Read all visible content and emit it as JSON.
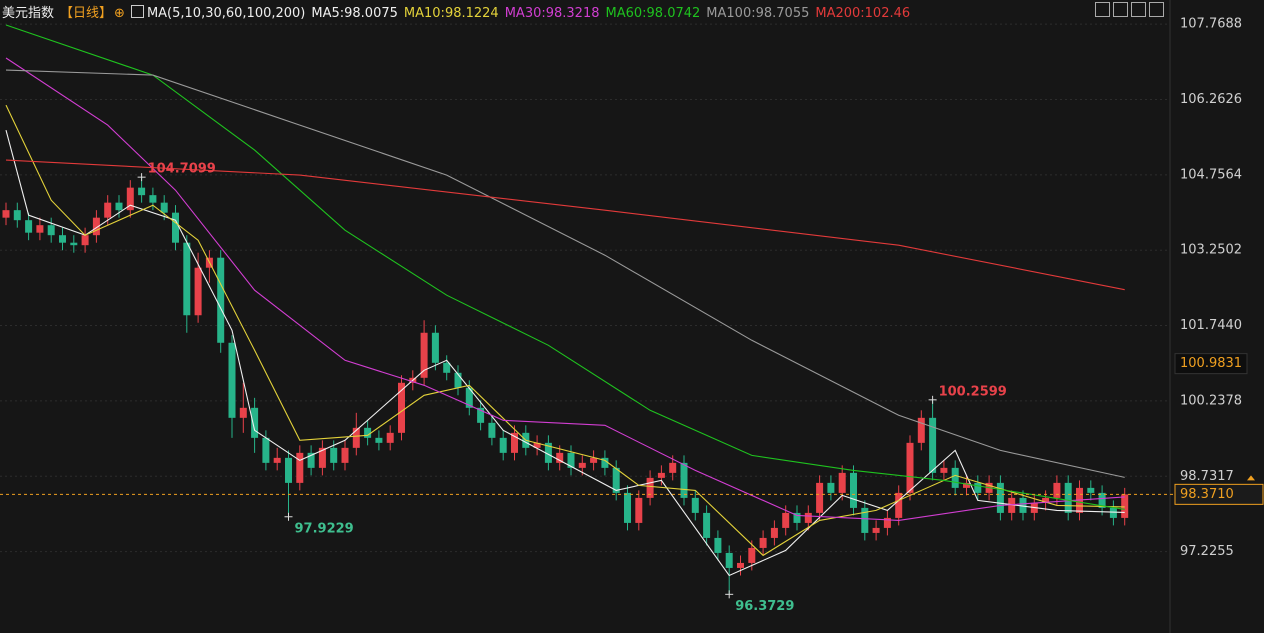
{
  "header": {
    "title": "美元指数",
    "period": "【日线】",
    "ma_label": "MA(5,10,30,60,100,200)"
  },
  "chart_data": {
    "type": "candlestick",
    "up_color": "#e8424a",
    "down_color": "#27b48a",
    "ylim": [
      95.6,
      108.25
    ],
    "yticks": [
      97.2255,
      98.7317,
      {
        "value": 100.2378,
        "label": "100.2378"
      },
      {
        "value": 101.744,
        "label": "101.7440"
      },
      103.2502,
      104.7564,
      106.2626,
      107.7688
    ],
    "grid": true,
    "open": [
      103.9,
      104.05,
      103.85,
      103.6,
      103.75,
      103.55,
      103.4,
      103.35,
      103.55,
      103.9,
      104.2,
      104.05,
      104.5,
      104.35,
      104.2,
      104.0,
      103.4,
      101.95,
      102.9,
      103.1,
      101.4,
      99.9,
      100.1,
      99.5,
      99.0,
      99.1,
      98.6,
      99.2,
      98.9,
      99.3,
      99.0,
      99.3,
      99.7,
      99.5,
      99.4,
      99.6,
      100.6,
      100.7,
      101.6,
      101.0,
      100.8,
      100.5,
      100.1,
      99.8,
      99.5,
      99.2,
      99.6,
      99.3,
      99.4,
      99.0,
      99.2,
      98.9,
      99.0,
      99.1,
      98.9,
      98.4,
      97.8,
      98.3,
      98.7,
      98.8,
      99.0,
      98.3,
      98.0,
      97.5,
      97.2,
      96.9,
      97.0,
      97.3,
      97.5,
      97.7,
      98.0,
      97.8,
      98.0,
      98.6,
      98.4,
      98.8,
      98.1,
      97.6,
      97.7,
      97.9,
      98.4,
      99.4,
      99.9,
      98.8,
      98.9,
      98.5,
      98.6,
      98.4,
      98.6,
      98.0,
      98.3,
      98.0,
      98.2,
      98.3,
      98.6,
      98.0,
      98.5,
      98.4,
      98.1,
      97.9
    ],
    "high": [
      104.2,
      104.2,
      104.0,
      103.9,
      103.9,
      103.7,
      103.55,
      103.7,
      104.05,
      104.35,
      104.35,
      104.65,
      104.7099,
      104.5,
      104.35,
      104.15,
      103.55,
      103.2,
      103.25,
      103.25,
      101.55,
      100.6,
      100.3,
      99.65,
      99.3,
      99.25,
      99.35,
      99.35,
      99.45,
      99.45,
      99.45,
      100.0,
      99.85,
      99.65,
      99.75,
      100.75,
      100.85,
      101.85,
      101.75,
      101.15,
      100.95,
      100.65,
      100.25,
      99.95,
      99.65,
      99.75,
      99.75,
      99.55,
      99.55,
      99.35,
      99.35,
      99.15,
      99.25,
      99.25,
      99.05,
      98.55,
      98.45,
      98.85,
      98.95,
      99.15,
      99.15,
      98.45,
      98.15,
      97.65,
      97.35,
      97.15,
      97.45,
      97.65,
      97.85,
      98.15,
      98.15,
      98.15,
      98.75,
      98.75,
      98.95,
      98.95,
      98.25,
      97.85,
      98.05,
      98.55,
      99.55,
      100.05,
      100.2599,
      99.05,
      99.05,
      98.75,
      98.75,
      98.75,
      98.75,
      98.45,
      98.45,
      98.35,
      98.45,
      98.75,
      98.75,
      98.65,
      98.65,
      98.55,
      98.25,
      98.5
    ],
    "low": [
      103.75,
      103.7,
      103.45,
      103.45,
      103.4,
      103.25,
      103.2,
      103.2,
      103.4,
      103.75,
      103.9,
      103.9,
      104.2,
      104.05,
      103.85,
      103.25,
      101.6,
      101.8,
      102.6,
      101.2,
      99.5,
      99.6,
      99.2,
      98.85,
      98.85,
      97.9229,
      98.45,
      98.75,
      98.75,
      98.85,
      98.85,
      99.15,
      99.35,
      99.25,
      99.25,
      99.45,
      100.45,
      100.55,
      100.85,
      100.65,
      100.35,
      99.95,
      99.65,
      99.35,
      99.05,
      99.05,
      99.15,
      99.15,
      98.85,
      98.85,
      98.75,
      98.75,
      98.85,
      98.75,
      98.25,
      97.65,
      97.65,
      98.15,
      98.55,
      98.65,
      98.15,
      97.85,
      97.35,
      97.05,
      96.3729,
      96.75,
      96.85,
      97.15,
      97.35,
      97.55,
      97.65,
      97.65,
      97.85,
      98.25,
      98.25,
      97.95,
      97.45,
      97.45,
      97.55,
      97.75,
      98.25,
      99.25,
      98.65,
      98.65,
      98.35,
      98.35,
      98.25,
      98.25,
      97.85,
      97.85,
      97.85,
      97.85,
      98.05,
      98.15,
      97.85,
      97.85,
      98.25,
      97.95,
      97.75,
      97.75
    ],
    "close": [
      104.05,
      103.85,
      103.6,
      103.75,
      103.55,
      103.4,
      103.35,
      103.55,
      103.9,
      104.2,
      104.05,
      104.5,
      104.35,
      104.2,
      104.0,
      103.4,
      101.95,
      102.9,
      103.1,
      101.4,
      99.9,
      100.1,
      99.5,
      99.0,
      99.1,
      98.6,
      99.2,
      98.9,
      99.3,
      99.0,
      99.3,
      99.7,
      99.5,
      99.4,
      99.6,
      100.6,
      100.7,
      101.6,
      101.0,
      100.8,
      100.5,
      100.1,
      99.8,
      99.5,
      99.2,
      99.6,
      99.3,
      99.4,
      99.0,
      99.2,
      98.9,
      99.0,
      99.1,
      98.9,
      98.4,
      97.8,
      98.3,
      98.7,
      98.8,
      99.0,
      98.3,
      98.0,
      97.5,
      97.2,
      96.9,
      97.0,
      97.3,
      97.5,
      97.7,
      98.0,
      97.8,
      98.0,
      98.6,
      98.4,
      98.8,
      98.1,
      97.6,
      97.7,
      97.9,
      98.4,
      99.4,
      99.9,
      98.8,
      98.9,
      98.5,
      98.6,
      98.4,
      98.6,
      98.0,
      98.3,
      98.0,
      98.2,
      98.3,
      98.6,
      98.0,
      98.5,
      98.4,
      98.1,
      97.9,
      98.37
    ],
    "series": [
      {
        "name": "MA5:98.0075",
        "color": "#f0f0f0",
        "x": [
          0,
          2,
          7,
          11,
          15,
          20,
          22,
          26,
          30,
          37,
          39,
          44,
          49,
          54,
          58,
          64,
          69,
          74,
          78,
          84,
          86,
          93,
          99
        ],
        "values": [
          105.65,
          103.95,
          103.55,
          104.15,
          103.85,
          101.65,
          99.65,
          99.05,
          99.45,
          100.85,
          101.05,
          99.65,
          99.05,
          98.45,
          98.65,
          96.75,
          97.25,
          98.35,
          98.05,
          99.25,
          98.25,
          98.05,
          98.01
        ]
      },
      {
        "name": "MA10:98.1224",
        "color": "#e3d23a",
        "x": [
          0,
          4,
          7,
          13,
          17,
          22,
          26,
          32,
          37,
          41,
          46,
          53,
          56,
          61,
          67,
          72,
          77,
          84,
          93,
          99
        ],
        "values": [
          106.15,
          104.25,
          103.55,
          104.15,
          103.45,
          101.25,
          99.45,
          99.55,
          100.35,
          100.55,
          99.45,
          99.05,
          98.55,
          98.45,
          97.15,
          97.85,
          98.05,
          98.75,
          98.15,
          98.12
        ]
      },
      {
        "name": "MA30:98.3218",
        "color": "#d23ed2",
        "x": [
          0,
          9,
          15,
          22,
          30,
          37,
          44,
          53,
          61,
          70,
          79,
          88,
          99
        ],
        "values": [
          107.09,
          105.75,
          104.45,
          102.45,
          101.05,
          100.55,
          99.85,
          99.75,
          98.85,
          97.95,
          97.85,
          98.15,
          98.32
        ]
      },
      {
        "name": "MA60:98.0742",
        "color": "#1fc21f",
        "x": [
          0,
          13,
          22,
          30,
          39,
          48,
          57,
          66,
          75,
          83,
          99
        ],
        "values": [
          107.75,
          106.75,
          105.25,
          103.65,
          102.35,
          101.35,
          100.05,
          99.15,
          98.85,
          98.65,
          98.07
        ]
      },
      {
        "name": "MA100:98.7055",
        "color": "#9a9a9a",
        "x": [
          0,
          13,
          26,
          39,
          53,
          66,
          79,
          88,
          99
        ],
        "values": [
          106.85,
          106.75,
          105.75,
          104.75,
          103.15,
          101.45,
          99.95,
          99.25,
          98.71
        ]
      },
      {
        "name": "MA200:102.46",
        "color": "#e23a3a",
        "x": [
          0,
          26,
          53,
          79,
          99
        ],
        "values": [
          105.05,
          104.75,
          104.05,
          103.35,
          102.46
        ]
      }
    ],
    "annotations": [
      {
        "index": 12,
        "value": 104.7099,
        "color": "#e8424a"
      },
      {
        "index": 25,
        "value": 97.9229,
        "color": "#3fbf8f"
      },
      {
        "index": 64,
        "value": 96.3729,
        "color": "#3fbf8f"
      },
      {
        "index": 82,
        "value": 100.2599,
        "color": "#e8424a"
      }
    ],
    "last_price": {
      "value": 98.371,
      "label": "98.3710"
    },
    "cursor_price": 100.9831
  }
}
